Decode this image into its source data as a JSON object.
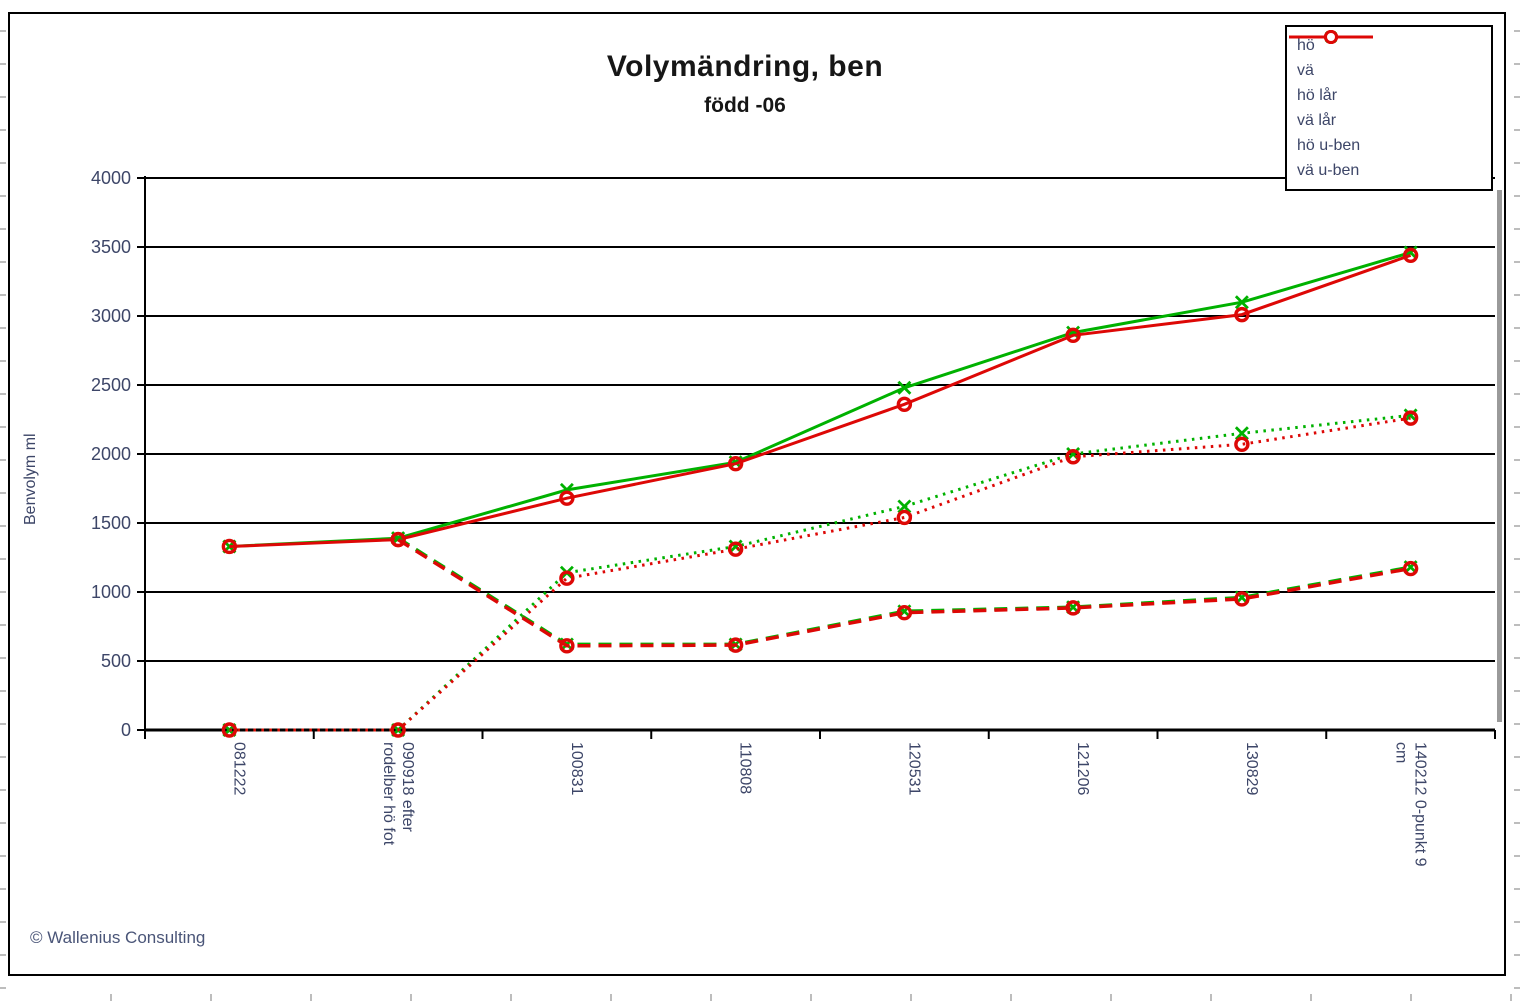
{
  "title": "Volymändring, ben",
  "subtitle": "född -06",
  "y_axis_title": "Benvolym ml",
  "footer": {
    "copyright": "© Wallenius Consulting"
  },
  "colors": {
    "green_series": "#00b100",
    "red_series": "#dd0806",
    "grid": "#000000",
    "tick_label": "#3d4668",
    "legend_shadow": "#9a9a9a"
  },
  "chart_data": {
    "type": "line",
    "title": "Volymändring, ben",
    "subtitle": "född -06",
    "xlabel": "",
    "ylabel": "Benvolym ml",
    "ylim": [
      0,
      4000
    ],
    "ytick_step": 500,
    "grid": true,
    "legend_position": "top-right",
    "categories": [
      "081222",
      "090918 efter\nrodelber hö fot",
      "100831",
      "110808",
      "120531",
      "121206",
      "130829",
      "140212 0-punkt 9\ncm"
    ],
    "series": [
      {
        "name": "hö",
        "color": "#00b100",
        "style": "solid",
        "marker": "x",
        "values": [
          1330,
          1390,
          1740,
          1940,
          2480,
          2880,
          3100,
          3460
        ]
      },
      {
        "name": "vä",
        "color": "#dd0806",
        "style": "solid",
        "marker": "circle",
        "values": [
          1330,
          1380,
          1680,
          1930,
          2360,
          2860,
          3010,
          3440
        ]
      },
      {
        "name": "hö lår",
        "color": "#00b100",
        "style": "dotted",
        "marker": "x",
        "values": [
          0,
          0,
          1140,
          1330,
          1620,
          2000,
          2150,
          2280
        ]
      },
      {
        "name": "vä lår",
        "color": "#dd0806",
        "style": "dotted",
        "marker": "circle",
        "values": [
          0,
          0,
          1100,
          1310,
          1540,
          1980,
          2070,
          2260
        ]
      },
      {
        "name": "hö u-ben",
        "color": "#00b100",
        "style": "dashed",
        "marker": "x",
        "values": [
          null,
          1390,
          620,
          620,
          860,
          890,
          960,
          1180
        ]
      },
      {
        "name": "vä u-ben",
        "color": "#dd0806",
        "style": "dashed",
        "marker": "circle",
        "values": [
          null,
          1380,
          610,
          615,
          850,
          885,
          950,
          1170
        ]
      }
    ]
  }
}
